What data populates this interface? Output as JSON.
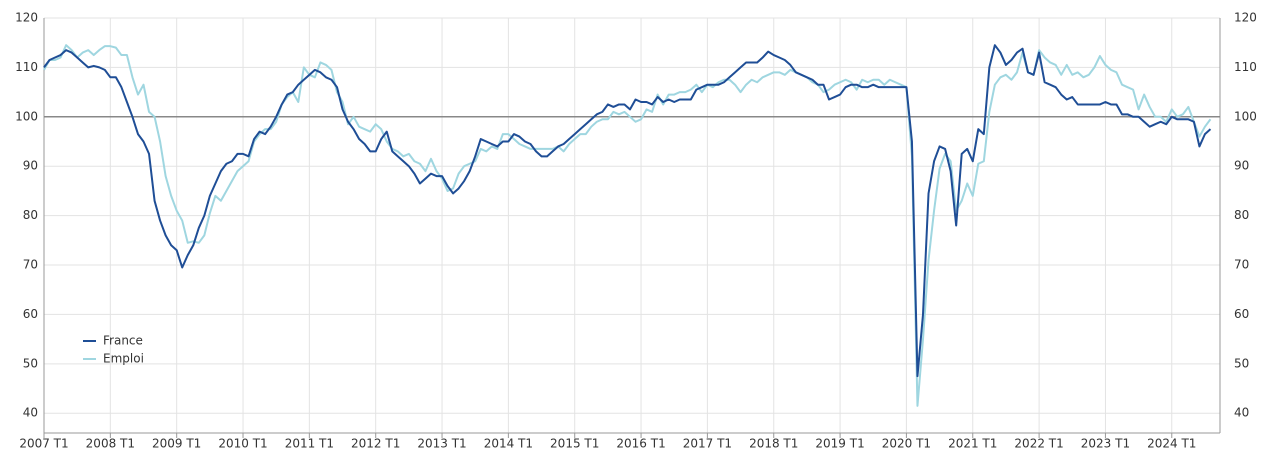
{
  "chart_data": {
    "type": "line",
    "categories": [
      "2007 T1",
      null,
      null,
      null,
      null,
      null,
      null,
      null,
      null,
      null,
      null,
      null,
      "2008 T1",
      null,
      null,
      null,
      null,
      null,
      null,
      null,
      null,
      null,
      null,
      null,
      "2009 T1",
      null,
      null,
      null,
      null,
      null,
      null,
      null,
      null,
      null,
      null,
      null,
      "2010 T1",
      null,
      null,
      null,
      null,
      null,
      null,
      null,
      null,
      null,
      null,
      null,
      "2011 T1",
      null,
      null,
      null,
      null,
      null,
      null,
      null,
      null,
      null,
      null,
      null,
      "2012 T1",
      null,
      null,
      null,
      null,
      null,
      null,
      null,
      null,
      null,
      null,
      null,
      "2013 T1",
      null,
      null,
      null,
      null,
      null,
      null,
      null,
      null,
      null,
      null,
      null,
      "2014 T1",
      null,
      null,
      null,
      null,
      null,
      null,
      null,
      null,
      null,
      null,
      null,
      "2015 T1",
      null,
      null,
      null,
      null,
      null,
      null,
      null,
      null,
      null,
      null,
      null,
      "2016 T1",
      null,
      null,
      null,
      null,
      null,
      null,
      null,
      null,
      null,
      null,
      null,
      "2017 T1",
      null,
      null,
      null,
      null,
      null,
      null,
      null,
      null,
      null,
      null,
      null,
      "2018 T1",
      null,
      null,
      null,
      null,
      null,
      null,
      null,
      null,
      null,
      null,
      null,
      "2019 T1",
      null,
      null,
      null,
      null,
      null,
      null,
      null,
      null,
      null,
      null,
      null,
      "2020 T1",
      null,
      null,
      null,
      null,
      null,
      null,
      null,
      null,
      null,
      null,
      null,
      "2021 T1",
      null,
      null,
      null,
      null,
      null,
      null,
      null,
      null,
      null,
      null,
      null,
      "2022 T1",
      null,
      null,
      null,
      null,
      null,
      null,
      null,
      null,
      null,
      null,
      null,
      "2023 T1",
      null,
      null,
      null,
      null,
      null,
      null,
      null,
      null,
      null,
      null,
      null,
      "2024 T1",
      null,
      null,
      null,
      null,
      null,
      null,
      null
    ],
    "series": [
      {
        "name": "France",
        "color": "#1f4e96",
        "values": [
          110,
          111.5,
          112,
          112.5,
          113.5,
          113,
          112,
          111,
          110,
          110.3,
          110,
          109.5,
          108,
          108,
          106,
          103,
          100,
          96.5,
          95,
          92.5,
          83,
          79,
          76,
          74,
          73,
          69.5,
          72,
          74,
          77.5,
          80,
          84,
          86.5,
          89,
          90.5,
          91,
          92.5,
          92.5,
          92,
          95.5,
          97,
          96.5,
          98,
          100,
          102.5,
          104.5,
          105,
          106.5,
          107.5,
          108.5,
          109.5,
          109,
          108,
          107.5,
          106,
          101.5,
          99,
          97.5,
          95.5,
          94.5,
          93,
          93,
          95.5,
          97,
          93,
          92,
          91,
          90,
          88.5,
          86.5,
          87.5,
          88.5,
          88,
          88,
          86,
          84.5,
          85.5,
          87,
          89,
          92,
          95.5,
          95,
          94.5,
          94,
          95,
          95,
          96.5,
          96,
          95,
          94.5,
          93,
          92,
          92,
          93,
          94,
          94.5,
          95.5,
          96.5,
          97.5,
          98.5,
          99.5,
          100.5,
          101,
          102.5,
          102,
          102.5,
          102.5,
          101.5,
          103.5,
          103,
          103,
          102.5,
          104,
          103,
          103.5,
          103,
          103.5,
          103.5,
          103.5,
          105.5,
          106,
          106.5,
          106.5,
          106.5,
          107,
          108,
          109,
          110,
          111,
          111,
          111,
          112,
          113.2,
          112.5,
          112,
          111.5,
          110.5,
          109,
          108.5,
          108,
          107.5,
          106.5,
          106.5,
          103.5,
          104,
          104.5,
          106,
          106.5,
          106.5,
          106,
          106,
          106.5,
          106,
          106,
          106,
          106,
          106,
          106,
          95,
          47.5,
          60,
          84.5,
          91,
          94,
          93.5,
          89,
          78,
          92.5,
          93.5,
          91,
          97.5,
          96.5,
          110,
          114.5,
          113,
          110.5,
          111.5,
          113,
          113.8,
          109,
          108.5,
          113,
          107,
          106.5,
          106,
          104.5,
          103.5,
          104,
          102.5,
          102.5,
          102.5,
          102.5,
          102.5,
          103,
          102.5,
          102.5,
          100.5,
          100.5,
          100,
          100,
          99,
          98,
          98.5,
          99,
          98.5,
          100,
          99.5,
          99.5,
          99.5,
          99,
          94,
          96.5,
          97.5
        ]
      },
      {
        "name": "Emploi",
        "color": "#9fd6e0",
        "values": [
          109.5,
          111.5,
          111.5,
          112,
          114.5,
          113.5,
          112,
          113,
          113.5,
          112.5,
          113.5,
          114.3,
          114.3,
          114,
          112.5,
          112.5,
          108,
          104.5,
          106.5,
          101,
          100,
          95,
          88,
          84,
          81,
          79,
          74.5,
          74.8,
          74.5,
          76,
          80.5,
          84,
          83,
          85,
          87,
          89,
          90,
          91,
          95,
          96.5,
          97.5,
          97.5,
          99,
          102.5,
          104,
          105,
          103,
          110,
          108.5,
          108,
          111,
          110.5,
          109.5,
          105,
          103,
          98.5,
          100,
          98,
          97.5,
          97,
          98.5,
          97.5,
          95,
          93.5,
          93,
          92,
          92.5,
          91,
          90.5,
          89,
          91.5,
          89,
          87.5,
          85,
          85.5,
          88.5,
          90,
          90.5,
          91,
          93.5,
          93,
          94,
          93.5,
          96.5,
          96.5,
          95.5,
          94.5,
          94,
          93.5,
          93.5,
          93.5,
          93.5,
          93.5,
          94,
          93,
          94.5,
          95.5,
          96.5,
          96.5,
          98,
          99,
          99.5,
          99.5,
          101,
          100.5,
          101,
          100,
          99,
          99.5,
          101.5,
          101,
          104.5,
          102.5,
          104.5,
          104.5,
          105,
          105,
          105.5,
          106.5,
          105,
          106.5,
          106,
          107,
          107.5,
          107.5,
          106.5,
          105,
          106.5,
          107.5,
          107,
          108,
          108.5,
          109,
          109,
          108.5,
          109.5,
          109,
          108.5,
          108,
          107,
          106.5,
          105,
          105.5,
          106.5,
          107,
          107.5,
          107,
          105.5,
          107.5,
          107,
          107.5,
          107.5,
          106.5,
          107.5,
          107,
          106.5,
          106,
          92,
          41.5,
          55,
          71,
          81,
          89.5,
          92.5,
          91,
          81,
          83,
          86.5,
          84,
          90.5,
          91,
          101,
          106.5,
          108,
          108.5,
          107.5,
          109,
          113,
          109,
          108.5,
          113.5,
          112,
          111,
          110.5,
          108.5,
          110.5,
          108.5,
          109,
          108,
          108.5,
          110,
          112.3,
          110.5,
          109.5,
          109,
          106.5,
          106,
          105.5,
          101.5,
          104.5,
          102,
          100,
          100,
          99,
          101.5,
          100,
          100.5,
          102,
          99,
          96,
          98,
          99.5
        ]
      }
    ],
    "ylim": [
      36,
      120
    ],
    "yticks": [
      40,
      50,
      60,
      70,
      80,
      90,
      100,
      110,
      120
    ],
    "reference_line": 100,
    "grid": true,
    "legend_position": "lower left"
  }
}
